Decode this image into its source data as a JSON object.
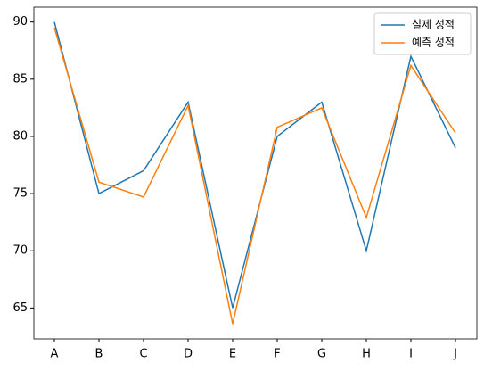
{
  "chart_data": {
    "type": "line",
    "categories": [
      "A",
      "B",
      "C",
      "D",
      "E",
      "F",
      "G",
      "H",
      "I",
      "J"
    ],
    "series": [
      {
        "name": "실제 성적",
        "color": "#1f77b4",
        "values": [
          90,
          75,
          77,
          83,
          65,
          80,
          83,
          70,
          87,
          79
        ]
      },
      {
        "name": "예측 성적",
        "color": "#ff7f0e",
        "values": [
          89.5,
          76,
          74.7,
          82.7,
          63.6,
          80.8,
          82.5,
          72.9,
          86.2,
          80.3
        ]
      }
    ],
    "ylim": [
      62.3,
      91.3
    ],
    "yticks": [
      65,
      70,
      75,
      80,
      85,
      90
    ],
    "legend": "upper right"
  }
}
